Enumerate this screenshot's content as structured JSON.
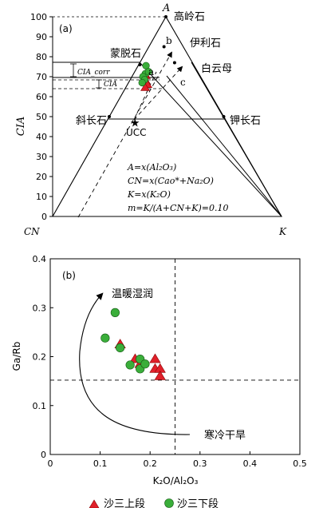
{
  "chart_data": [
    {
      "type": "ternary",
      "panel_label": "(a)",
      "apex_top": "A",
      "corner_left": "CN",
      "corner_right": "K",
      "y_axis_label": "CIA",
      "y_axis_range": [
        0,
        100
      ],
      "y_ticks": [
        "0",
        "10",
        "20",
        "30",
        "40",
        "50",
        "60",
        "70",
        "80",
        "90",
        "100"
      ],
      "minerals": [
        {
          "name": "高岭石",
          "cia": 100,
          "m": 0
        },
        {
          "name": "伊利石",
          "cia": 85,
          "m": 0.22
        },
        {
          "name": "白云母",
          "cia": 77,
          "m": 0.33
        },
        {
          "name": "蒙脱石",
          "cia": 76,
          "m": 0.01
        },
        {
          "name": "斜长石",
          "cia": 50,
          "m": 0
        },
        {
          "name": "钾长石",
          "cia": 50,
          "m": 0.5
        }
      ],
      "reference_points": [
        {
          "name": "UCC",
          "cia": 47,
          "m": 0.12
        }
      ],
      "guide_labels": [
        "a",
        "b",
        "c"
      ],
      "cia_range_labels": [
        "CIA_corr",
        "CIA"
      ],
      "cia_corr_range": [
        66,
        75.5
      ],
      "cia_range": [
        64,
        69
      ],
      "formulas": [
        "A=x(Al₂O₃)",
        "CN=x(Cao*+Na₂O)",
        "K=x(K₂O)",
        "m=K/(A+CN+K)=0.10"
      ],
      "series": [
        {
          "name": "沙三上段",
          "marker": "triangle",
          "color": "#e0202a",
          "points": [
            {
              "cia": 70.5,
              "m": 0.1
            },
            {
              "cia": 68,
              "m": 0.11
            },
            {
              "cia": 66,
              "m": 0.13
            },
            {
              "cia": 64.5,
              "m": 0.12
            },
            {
              "cia": 71,
              "m": 0.09
            }
          ]
        },
        {
          "name": "沙三下段",
          "marker": "circle",
          "color": "#3aae3a",
          "points": [
            {
              "cia": 75.5,
              "m": 0.07
            },
            {
              "cia": 71.5,
              "m": 0.09
            },
            {
              "cia": 70,
              "m": 0.08
            },
            {
              "cia": 68.5,
              "m": 0.1
            },
            {
              "cia": 67,
              "m": 0.09
            },
            {
              "cia": 72.5,
              "m": 0.11
            }
          ]
        }
      ]
    },
    {
      "type": "scatter",
      "panel_label": "(b)",
      "xlabel": "K₂O/Al₂O₃",
      "ylabel": "Ga/Rb",
      "xlim": [
        0,
        0.5
      ],
      "ylim": [
        0,
        0.4
      ],
      "x_ticks": [
        "0",
        "0.1",
        "0.2",
        "0.3",
        "0.4",
        "0.5"
      ],
      "y_ticks": [
        "0",
        "0.1",
        "0.2",
        "0.3",
        "0.4"
      ],
      "threshold_x": 0.25,
      "threshold_y": 0.152,
      "arrow_labels": {
        "top": "温暖湿润",
        "bottom": "寒冷干旱"
      },
      "series": [
        {
          "name": "沙三上段",
          "marker": "triangle",
          "color": "#e0202a",
          "x": [
            0.14,
            0.17,
            0.18,
            0.21,
            0.21,
            0.22,
            0.22
          ],
          "y": [
            0.225,
            0.195,
            0.185,
            0.195,
            0.175,
            0.175,
            0.16
          ]
        },
        {
          "name": "沙三下段",
          "marker": "circle",
          "color": "#3aae3a",
          "x": [
            0.13,
            0.11,
            0.14,
            0.16,
            0.18,
            0.18,
            0.19
          ],
          "y": [
            0.29,
            0.238,
            0.218,
            0.183,
            0.195,
            0.175,
            0.185
          ]
        }
      ]
    }
  ],
  "legend": [
    {
      "label": "沙三上段",
      "marker": "triangle",
      "color": "#e0202a"
    },
    {
      "label": "沙三下段",
      "marker": "circle",
      "color": "#3aae3a"
    }
  ]
}
